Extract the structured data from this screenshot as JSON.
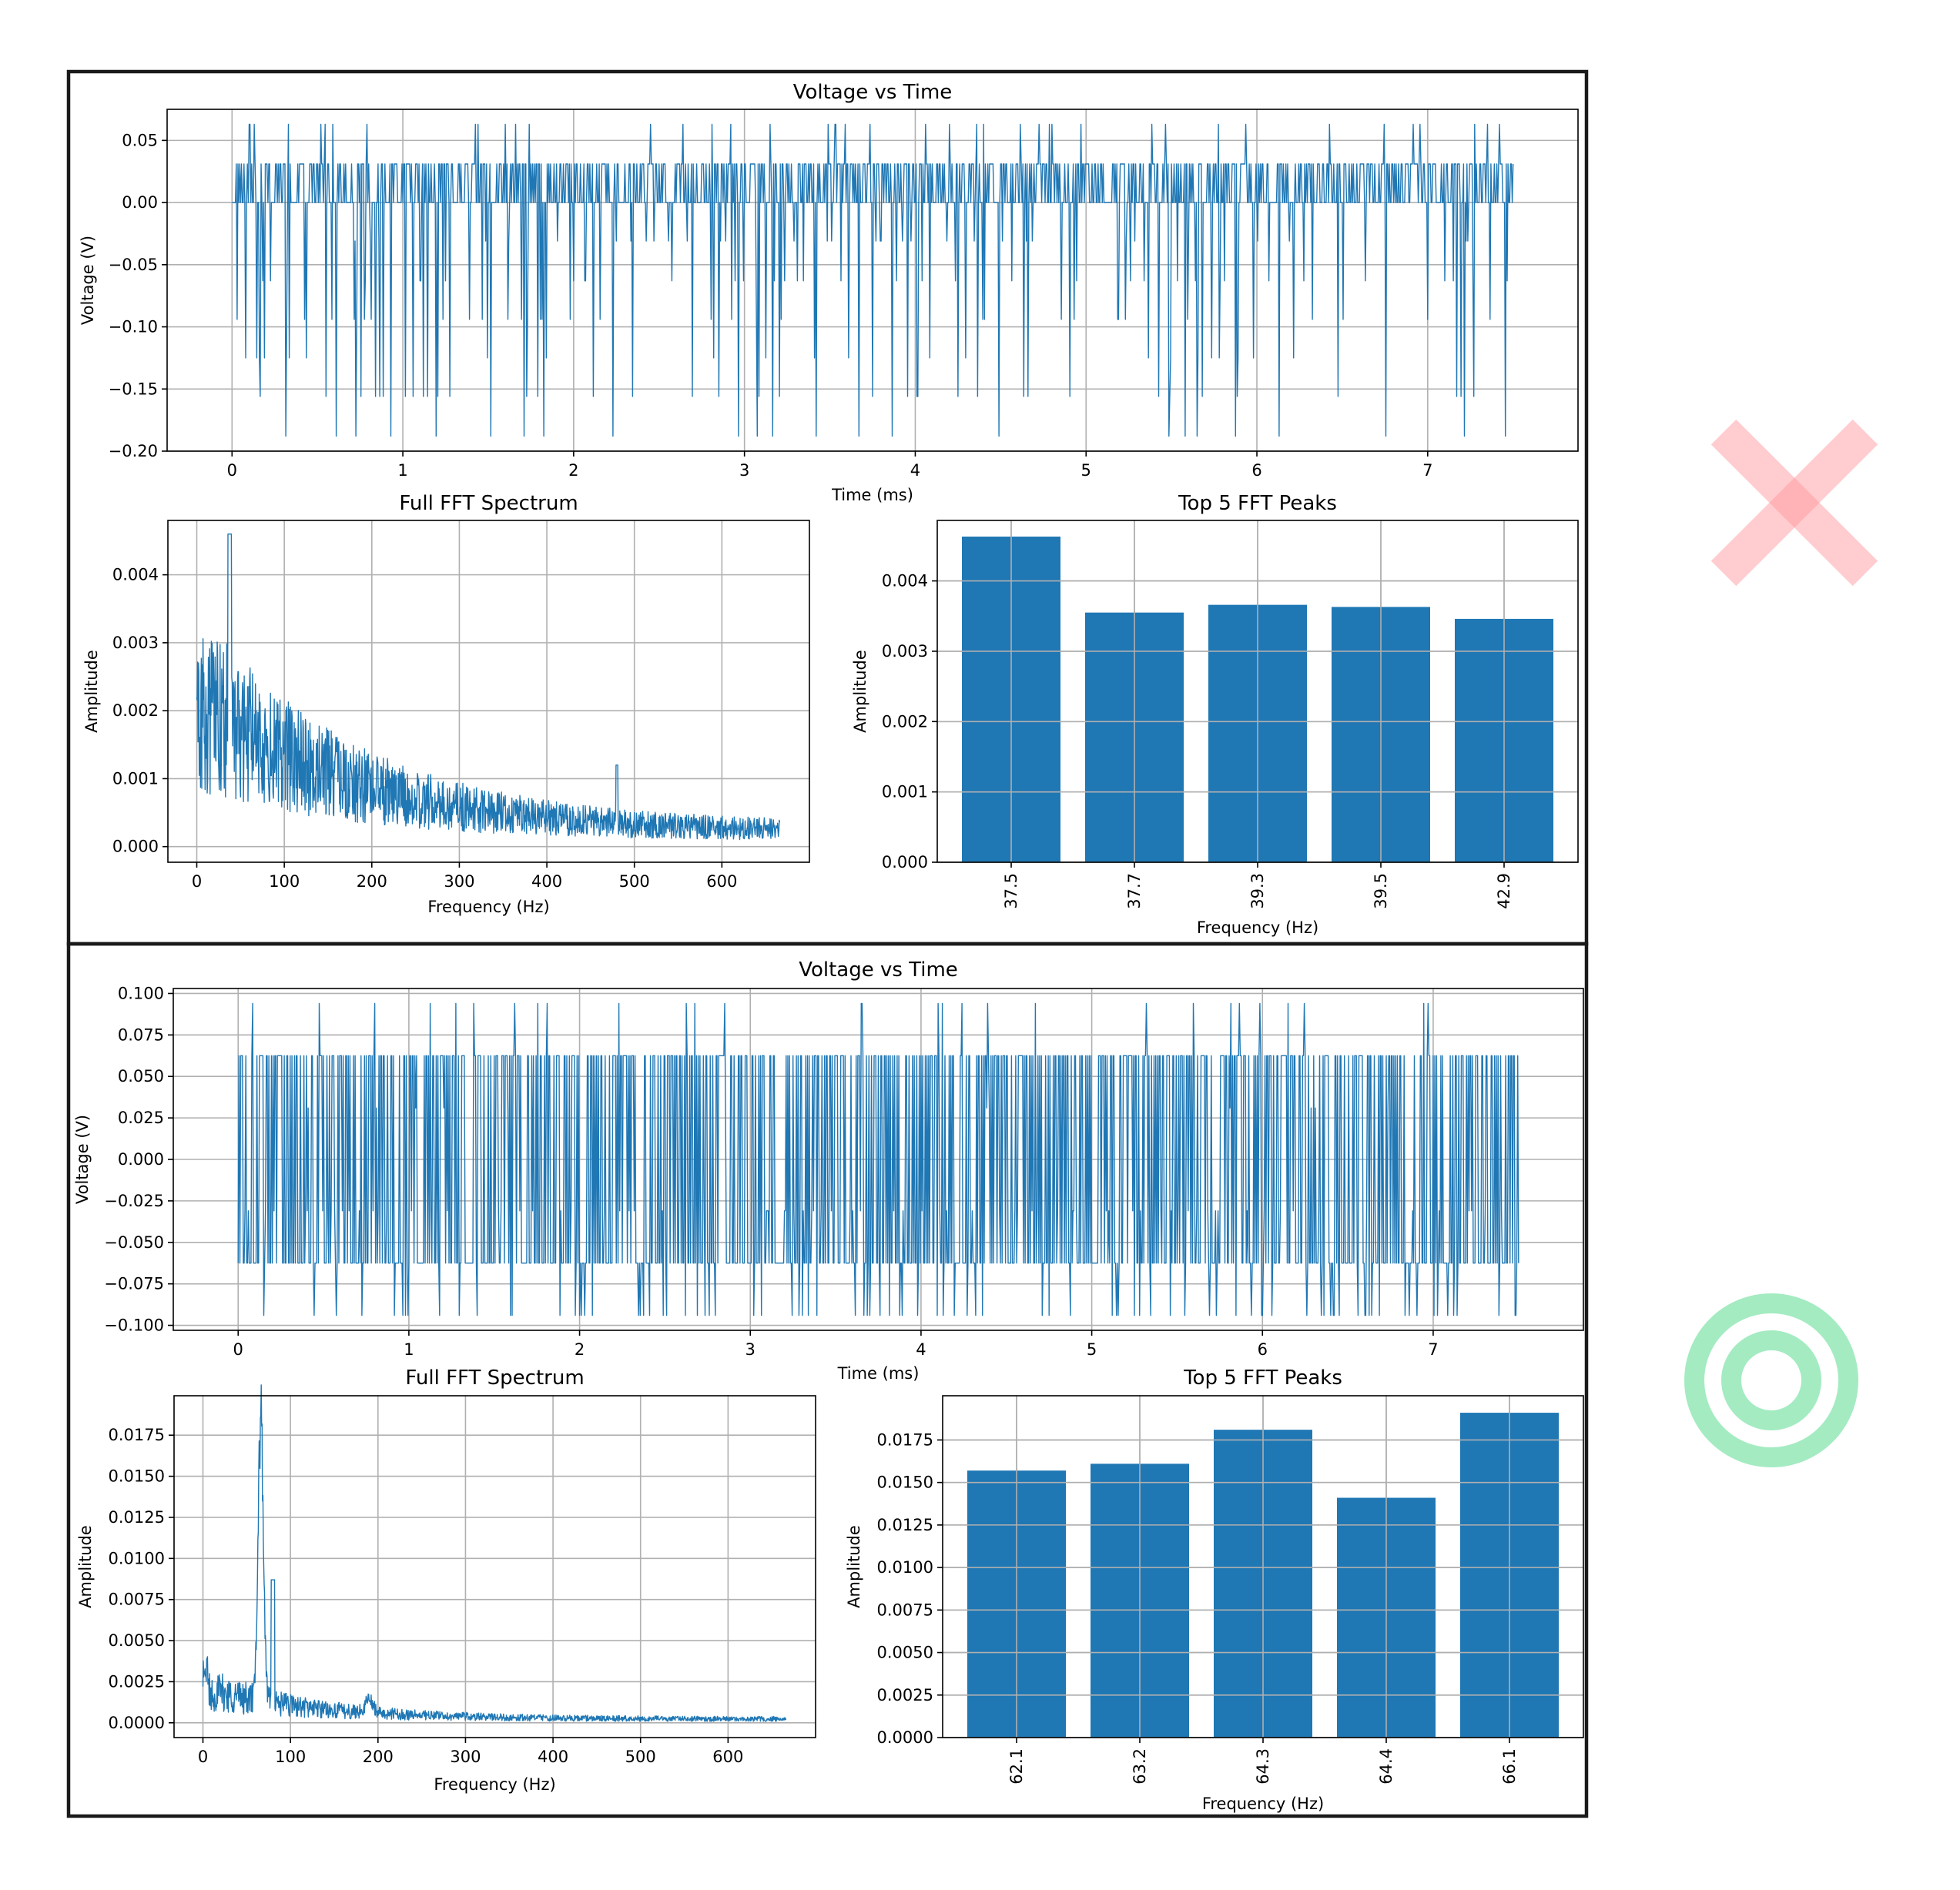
{
  "colors": {
    "series": "#1f77b4",
    "grid": "#b0b0b0",
    "cross_mark": "#ff9aa0",
    "target_mark": "#7ee3a8"
  },
  "icons": [
    "cross-mark-icon",
    "target-icon"
  ],
  "chart_data": [
    {
      "type": "line",
      "title": "Voltage vs Time",
      "xlabel": "Time (ms)",
      "ylabel": "Voltage (V)",
      "xlim": [
        -0.38,
        7.88
      ],
      "ylim": [
        -0.2,
        0.075
      ],
      "xticks": [
        0,
        1,
        2,
        3,
        4,
        5,
        6,
        7
      ],
      "xtick_labels": [
        "0",
        "1",
        "2",
        "3",
        "4",
        "5",
        "6",
        "7"
      ],
      "yticks": [
        -0.2,
        -0.15,
        -0.1,
        -0.05,
        0.0,
        0.05
      ],
      "ytick_labels": [
        "−0.20",
        "−0.15",
        "−0.10",
        "−0.05",
        "0.00",
        "0.05"
      ],
      "grid": true,
      "signal": {
        "x_start": 0,
        "x_end": 7.5,
        "levels": [
          0.0,
          0.031
        ],
        "dips": [
          -0.031,
          -0.063,
          -0.094,
          -0.125,
          -0.156,
          -0.188
        ],
        "spikes": [
          0.063
        ]
      }
    },
    {
      "type": "line",
      "title": "Full FFT Spectrum",
      "xlabel": "Frequency (Hz)",
      "ylabel": "Amplitude",
      "xlim": [
        -33,
        700
      ],
      "ylim": [
        -0.00023,
        0.0048
      ],
      "xticks": [
        0,
        100,
        200,
        300,
        400,
        500,
        600
      ],
      "xtick_labels": [
        "0",
        "100",
        "200",
        "300",
        "400",
        "500",
        "600"
      ],
      "yticks": [
        0.0,
        0.001,
        0.002,
        0.003,
        0.004
      ],
      "ytick_labels": [
        "0.000",
        "0.001",
        "0.002",
        "0.003",
        "0.004"
      ],
      "grid": true,
      "x_range": [
        0,
        666
      ],
      "peak": {
        "x": 37.5,
        "y": 0.0046
      }
    },
    {
      "type": "bar",
      "title": "Top 5 FFT Peaks",
      "xlabel": "Frequency (Hz)",
      "ylabel": "Amplitude",
      "categories": [
        "37.5",
        "37.7",
        "39.3",
        "39.5",
        "42.9"
      ],
      "values": [
        0.00463,
        0.00355,
        0.00366,
        0.00363,
        0.00346
      ],
      "ylim": [
        0,
        0.00486
      ],
      "yticks": [
        0.0,
        0.001,
        0.002,
        0.003,
        0.004
      ],
      "ytick_labels": [
        "0.000",
        "0.001",
        "0.002",
        "0.003",
        "0.004"
      ],
      "grid": true
    },
    {
      "type": "line",
      "title": "Voltage vs Time",
      "xlabel": "Time (ms)",
      "ylabel": "Voltage (V)",
      "xlim": [
        -0.38,
        7.88
      ],
      "ylim": [
        -0.103,
        0.103
      ],
      "xticks": [
        0,
        1,
        2,
        3,
        4,
        5,
        6,
        7
      ],
      "xtick_labels": [
        "0",
        "1",
        "2",
        "3",
        "4",
        "5",
        "6",
        "7"
      ],
      "yticks": [
        -0.1,
        -0.075,
        -0.05,
        -0.025,
        0.0,
        0.025,
        0.05,
        0.075,
        0.1
      ],
      "ytick_labels": [
        "−0.100",
        "−0.075",
        "−0.050",
        "−0.025",
        "0.000",
        "0.025",
        "0.050",
        "0.075",
        "0.100"
      ],
      "grid": true,
      "signal": {
        "x_start": 0,
        "x_end": 7.5,
        "levels": [
          -0.0625,
          0.0625
        ],
        "dips": [
          -0.094,
          -0.031
        ],
        "spikes": [
          0.094,
          0.031
        ]
      }
    },
    {
      "type": "line",
      "title": "Full FFT Spectrum",
      "xlabel": "Frequency (Hz)",
      "ylabel": "Amplitude",
      "xlim": [
        -33,
        700
      ],
      "ylim": [
        -0.0009,
        0.0199
      ],
      "xticks": [
        0,
        100,
        200,
        300,
        400,
        500,
        600
      ],
      "xtick_labels": [
        "0",
        "100",
        "200",
        "300",
        "400",
        "500",
        "600"
      ],
      "yticks": [
        0.0,
        0.0025,
        0.005,
        0.0075,
        0.01,
        0.0125,
        0.015,
        0.0175
      ],
      "ytick_labels": [
        "0.0000",
        "0.0025",
        "0.0050",
        "0.0075",
        "0.0100",
        "0.0125",
        "0.0150",
        "0.0175"
      ],
      "grid": true,
      "x_range": [
        0,
        666
      ],
      "peak": {
        "x": 66.1,
        "y": 0.019
      }
    },
    {
      "type": "bar",
      "title": "Top 5 FFT Peaks",
      "xlabel": "Frequency (Hz)",
      "ylabel": "Amplitude",
      "categories": [
        "62.1",
        "63.2",
        "64.3",
        "64.4",
        "66.1"
      ],
      "values": [
        0.0157,
        0.0161,
        0.0181,
        0.0141,
        0.0191
      ],
      "ylim": [
        0,
        0.0201
      ],
      "yticks": [
        0.0,
        0.0025,
        0.005,
        0.0075,
        0.01,
        0.0125,
        0.015,
        0.0175
      ],
      "ytick_labels": [
        "0.0000",
        "0.0025",
        "0.0050",
        "0.0075",
        "0.0100",
        "0.0125",
        "0.0150",
        "0.0175"
      ],
      "grid": true
    }
  ]
}
